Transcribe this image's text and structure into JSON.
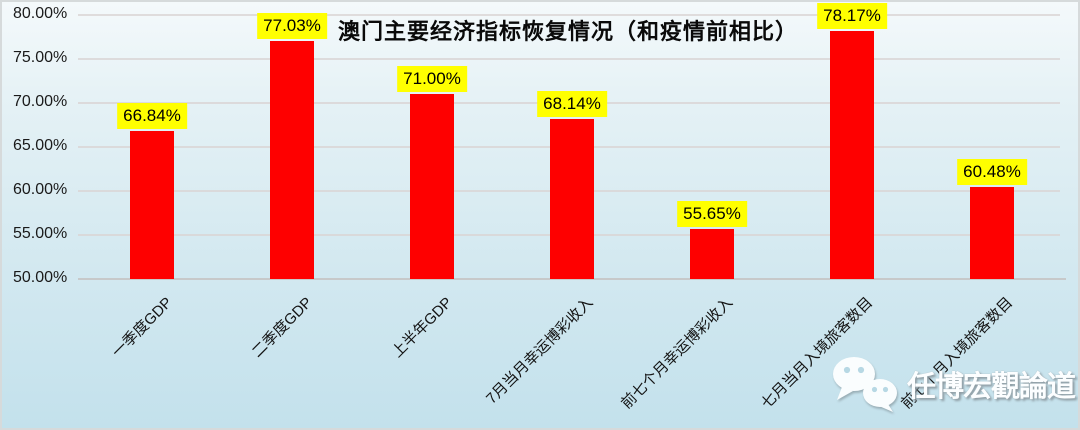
{
  "chart_data": {
    "type": "bar",
    "title": "澳门主要经济指标恢复情况（和疫情前相比）",
    "categories": [
      "一季度GDP",
      "二季度GDP",
      "上半年GDP",
      "7月当月幸运博彩收入",
      "前七个月幸运博彩收入",
      "七月当月入境旅客数目",
      "前七个月入境旅客数目"
    ],
    "values": [
      66.84,
      77.03,
      71.0,
      68.14,
      55.65,
      78.17,
      60.48
    ],
    "value_labels": [
      "66.84%",
      "77.03%",
      "71.00%",
      "68.14%",
      "55.65%",
      "78.17%",
      "60.48%"
    ],
    "xlabel": "",
    "ylabel": "",
    "ylim": [
      50,
      80
    ],
    "ytick_step": 5,
    "ytick_labels": [
      "50.00%",
      "55.00%",
      "60.00%",
      "65.00%",
      "70.00%",
      "75.00%",
      "80.00%"
    ],
    "grid": true,
    "legend": "none",
    "colors": {
      "bar": "#fe0000",
      "value_label_bg": "#ffff00",
      "value_label_text": "#000000",
      "gridline": "#d9d5d4",
      "background_top": "#f4f9fb",
      "background_bottom": "#c3e1ec"
    }
  },
  "watermark": {
    "icon": "wechat-icon",
    "text": "任博宏觀論道"
  }
}
